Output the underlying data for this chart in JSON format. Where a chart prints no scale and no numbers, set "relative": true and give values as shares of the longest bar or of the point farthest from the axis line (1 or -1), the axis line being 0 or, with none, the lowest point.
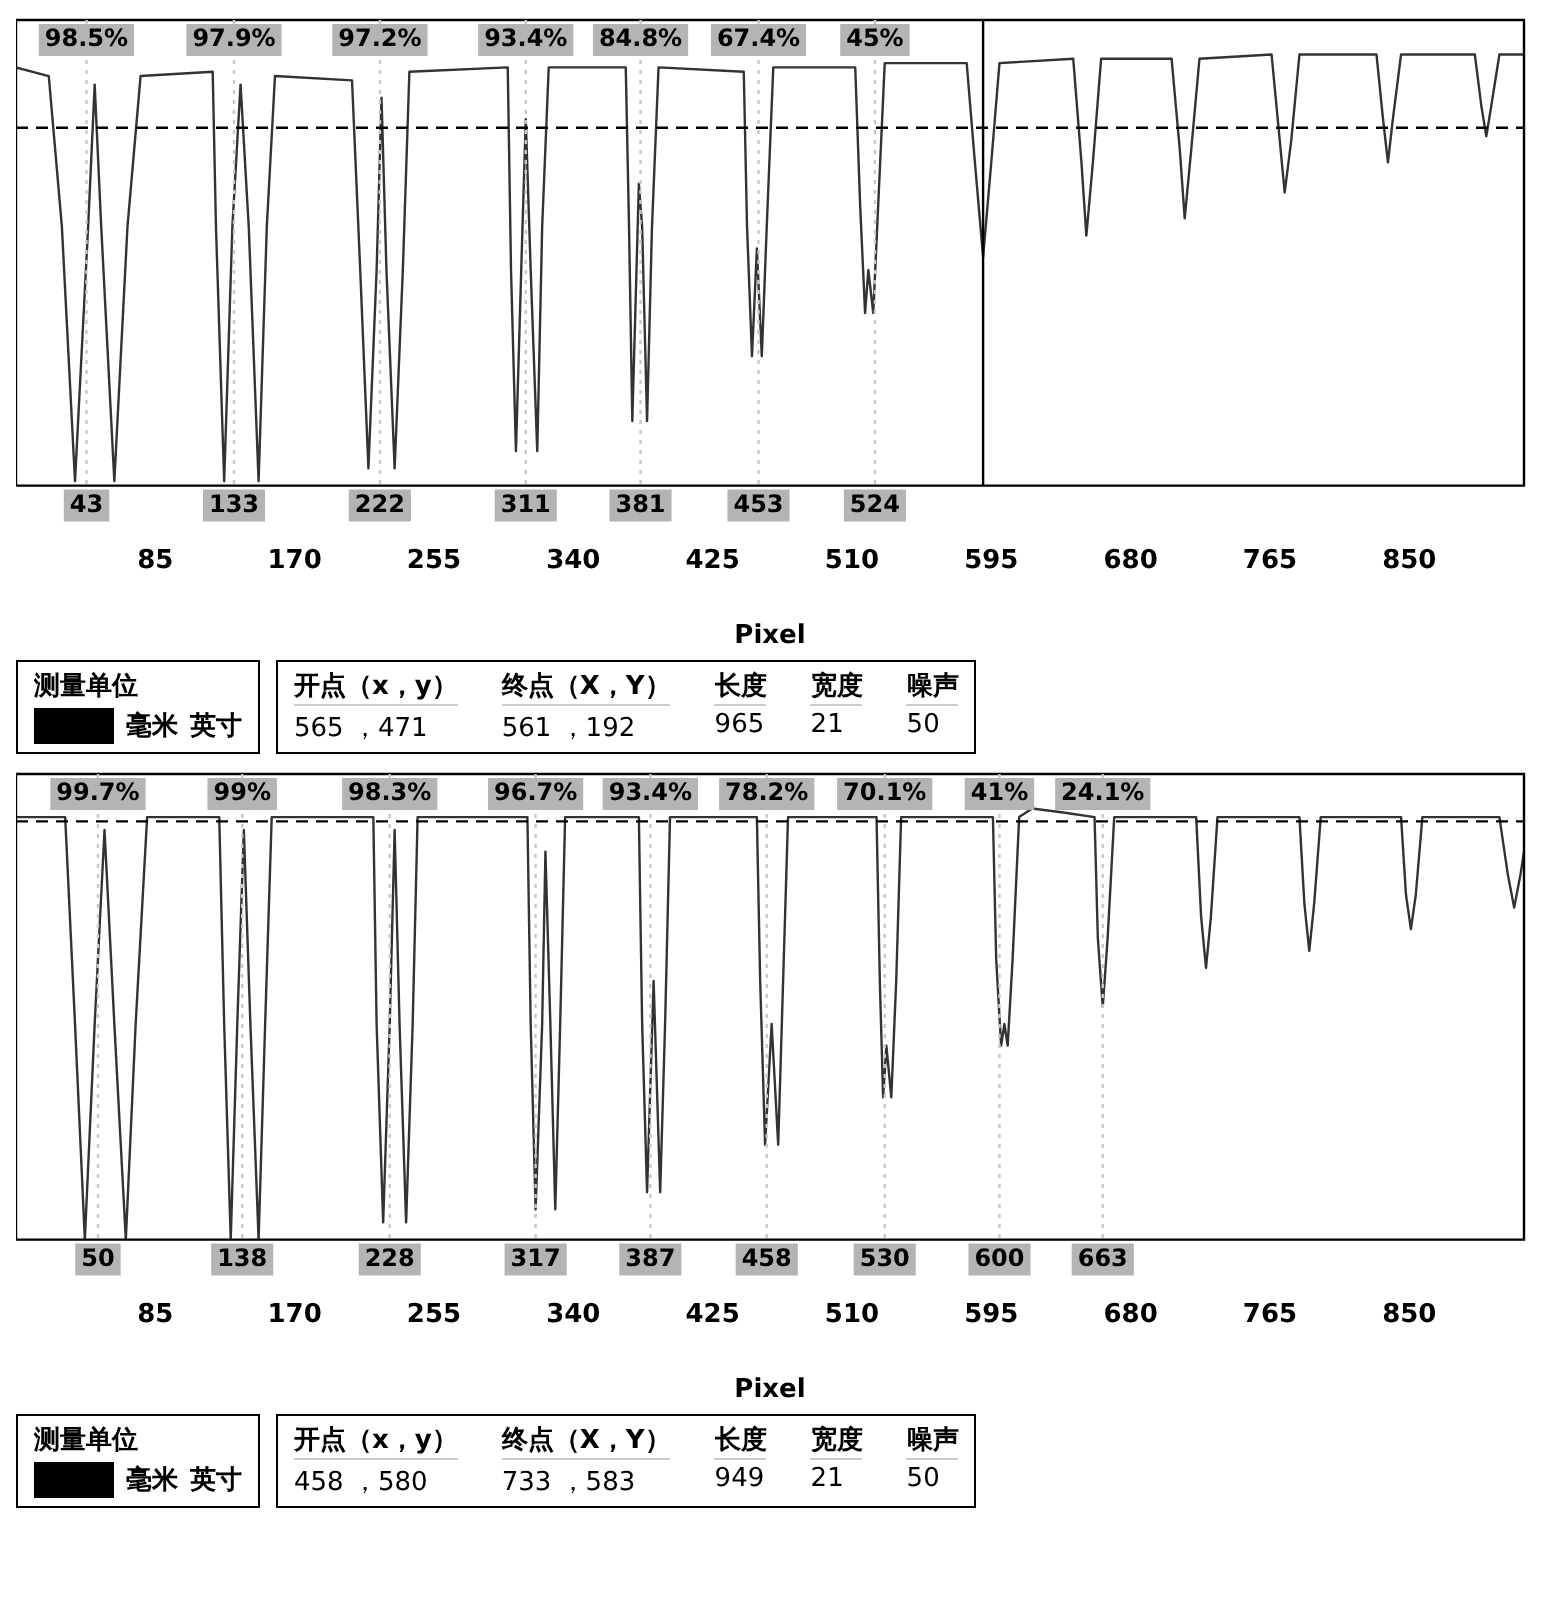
{
  "chart_data": [
    {
      "type": "line",
      "xlabel": "Pixel",
      "relative": true,
      "xlim": [
        0,
        920
      ],
      "xticks": [
        85,
        170,
        255,
        340,
        425,
        510,
        595,
        680,
        765,
        850
      ],
      "series": [
        {
          "color": "#333333",
          "x": [
            0,
            20,
            28,
            36,
            44,
            48,
            52,
            60,
            68,
            76,
            120,
            122,
            127,
            132,
            137,
            142,
            148,
            153,
            158,
            205,
            210,
            215,
            220,
            223,
            226,
            231,
            236,
            240,
            300,
            302,
            305,
            309,
            311,
            314,
            318,
            321,
            325,
            372,
            374,
            376,
            380,
            382,
            385,
            388,
            392,
            444,
            446,
            449,
            452,
            455,
            458,
            462,
            512,
            515,
            518,
            520,
            523,
            526,
            530,
            580,
            585,
            590,
            595,
            600,
            645,
            650,
            653,
            657,
            662,
            705,
            710,
            713,
            717,
            722,
            766,
            771,
            774,
            778,
            783,
            830,
            834,
            837,
            840,
            845,
            890,
            894,
            897,
            900,
            905,
            920
          ],
          "values": [
            0.97,
            0.95,
            0.6,
            0.01,
            0.6,
            0.93,
            0.6,
            0.01,
            0.6,
            0.95,
            0.96,
            0.6,
            0.01,
            0.6,
            0.93,
            0.6,
            0.01,
            0.6,
            0.95,
            0.94,
            0.5,
            0.04,
            0.5,
            0.9,
            0.5,
            0.04,
            0.5,
            0.96,
            0.97,
            0.5,
            0.08,
            0.6,
            0.85,
            0.5,
            0.08,
            0.6,
            0.97,
            0.97,
            0.6,
            0.15,
            0.7,
            0.6,
            0.15,
            0.6,
            0.97,
            0.96,
            0.6,
            0.3,
            0.55,
            0.3,
            0.6,
            0.97,
            0.97,
            0.65,
            0.4,
            0.5,
            0.4,
            0.65,
            0.98,
            0.98,
            0.75,
            0.53,
            0.75,
            0.98,
            0.99,
            0.75,
            0.58,
            0.75,
            0.99,
            0.99,
            0.78,
            0.62,
            0.78,
            0.99,
            1,
            0.8,
            0.68,
            0.8,
            1,
            1,
            0.85,
            0.75,
            0.85,
            1,
            1,
            0.88,
            0.81,
            0.88,
            1,
            1
          ]
        }
      ],
      "ref_lines": [
        {
          "axis": "y",
          "value": 0.83,
          "color": "#000000",
          "line_style": "dashed"
        },
        {
          "axis": "x",
          "value": 590,
          "color": "#000000",
          "line_style": "solid"
        },
        {
          "axis": "x",
          "value": 43,
          "label": "43",
          "color": "#c8c8c8",
          "line_style": "dotted"
        },
        {
          "axis": "x",
          "value": 133,
          "label": "133",
          "color": "#c8c8c8",
          "line_style": "dotted"
        },
        {
          "axis": "x",
          "value": 222,
          "label": "222",
          "color": "#c8c8c8",
          "line_style": "dotted"
        },
        {
          "axis": "x",
          "value": 311,
          "label": "311",
          "color": "#c8c8c8",
          "line_style": "dotted"
        },
        {
          "axis": "x",
          "value": 381,
          "label": "381",
          "color": "#c8c8c8",
          "line_style": "dotted"
        },
        {
          "axis": "x",
          "value": 453,
          "label": "453",
          "color": "#c8c8c8",
          "line_style": "dotted"
        },
        {
          "axis": "x",
          "value": 524,
          "label": "524",
          "color": "#c8c8c8",
          "line_style": "dotted"
        }
      ],
      "annotations": [
        {
          "text": "98.5%",
          "x": 43
        },
        {
          "text": "97.9%",
          "x": 133
        },
        {
          "text": "97.2%",
          "x": 222
        },
        {
          "text": "93.4%",
          "x": 311
        },
        {
          "text": "84.8%",
          "x": 381
        },
        {
          "text": "67.4%",
          "x": 453
        },
        {
          "text": "45%",
          "x": 524
        }
      ]
    },
    {
      "type": "other",
      "annotations": [
        "测量单位",
        "毫米",
        "英寸",
        "开点（x，y）",
        "终点（X，Y）",
        "长度",
        "宽度",
        "噪声",
        "565 ，471",
        "561 ，192",
        "965",
        "21",
        "50"
      ]
    },
    {
      "type": "line",
      "xlabel": "Pixel",
      "relative": true,
      "xlim": [
        0,
        920
      ],
      "xticks": [
        85,
        170,
        255,
        340,
        425,
        510,
        595,
        680,
        765,
        850
      ],
      "series": [
        {
          "color": "#333333",
          "x": [
            0,
            30,
            36,
            42,
            48,
            54,
            60,
            67,
            73,
            80,
            124,
            127,
            131,
            135,
            139,
            143,
            148,
            152,
            156,
            218,
            220,
            224,
            228,
            231,
            234,
            238,
            242,
            245,
            312,
            314,
            317,
            321,
            323,
            326,
            329,
            332,
            335,
            380,
            382,
            385,
            389,
            393,
            396,
            399,
            452,
            454,
            457,
            461,
            465,
            468,
            471,
            525,
            527,
            529,
            531,
            534,
            537,
            540,
            596,
            598,
            601,
            603,
            605,
            608,
            612,
            620,
            640,
            658,
            660,
            663,
            666,
            670,
            720,
            723,
            726,
            729,
            733,
            783,
            786,
            789,
            792,
            796,
            845,
            848,
            851,
            854,
            858,
            905,
            910,
            914,
            918,
            920
          ],
          "values": [
            0.98,
            0.98,
            0.5,
            0,
            0.5,
            0.95,
            0.5,
            0,
            0.5,
            0.98,
            0.98,
            0.5,
            0,
            0.5,
            0.95,
            0.5,
            0,
            0.5,
            0.98,
            0.98,
            0.5,
            0.04,
            0.5,
            0.95,
            0.5,
            0.04,
            0.5,
            0.98,
            0.98,
            0.5,
            0.07,
            0.5,
            0.9,
            0.5,
            0.07,
            0.5,
            0.98,
            0.98,
            0.5,
            0.11,
            0.6,
            0.11,
            0.5,
            0.98,
            0.98,
            0.6,
            0.22,
            0.5,
            0.22,
            0.6,
            0.98,
            0.98,
            0.6,
            0.33,
            0.45,
            0.33,
            0.6,
            0.98,
            0.98,
            0.65,
            0.45,
            0.5,
            0.45,
            0.65,
            0.98,
            1,
            0.99,
            0.98,
            0.7,
            0.54,
            0.7,
            0.98,
            0.98,
            0.75,
            0.63,
            0.75,
            0.98,
            0.98,
            0.78,
            0.67,
            0.78,
            0.98,
            0.98,
            0.8,
            0.72,
            0.8,
            0.98,
            0.98,
            0.85,
            0.77,
            0.85,
            0.9
          ]
        }
      ],
      "ref_lines": [
        {
          "axis": "y",
          "value": 0.97,
          "color": "#000000",
          "line_style": "dashed"
        },
        {
          "axis": "x",
          "value": 50,
          "label": "50",
          "color": "#c8c8c8",
          "line_style": "dotted"
        },
        {
          "axis": "x",
          "value": 138,
          "label": "138",
          "color": "#c8c8c8",
          "line_style": "dotted"
        },
        {
          "axis": "x",
          "value": 228,
          "label": "228",
          "color": "#c8c8c8",
          "line_style": "dotted"
        },
        {
          "axis": "x",
          "value": 317,
          "label": "317",
          "color": "#c8c8c8",
          "line_style": "dotted"
        },
        {
          "axis": "x",
          "value": 387,
          "label": "387",
          "color": "#c8c8c8",
          "line_style": "dotted"
        },
        {
          "axis": "x",
          "value": 458,
          "label": "458",
          "color": "#c8c8c8",
          "line_style": "dotted"
        },
        {
          "axis": "x",
          "value": 530,
          "label": "530",
          "color": "#c8c8c8",
          "line_style": "dotted"
        },
        {
          "axis": "x",
          "value": 600,
          "label": "600",
          "color": "#c8c8c8",
          "line_style": "dotted"
        },
        {
          "axis": "x",
          "value": 663,
          "label": "663",
          "color": "#c8c8c8",
          "line_style": "dotted"
        }
      ],
      "annotations": [
        {
          "text": "99.7%",
          "x": 50
        },
        {
          "text": "99%",
          "x": 138
        },
        {
          "text": "98.3%",
          "x": 228
        },
        {
          "text": "96.7%",
          "x": 317
        },
        {
          "text": "93.4%",
          "x": 387
        },
        {
          "text": "78.2%",
          "x": 458
        },
        {
          "text": "70.1%",
          "x": 530
        },
        {
          "text": "41%",
          "x": 600
        },
        {
          "text": "24.1%",
          "x": 663
        }
      ]
    },
    {
      "type": "other",
      "annotations": [
        "测量单位",
        "毫米",
        "英寸",
        "开点（x，y）",
        "终点（X，Y）",
        "长度",
        "宽度",
        "噪声",
        "458 ，580",
        "733 ，583",
        "949",
        "21",
        "50"
      ]
    }
  ]
}
